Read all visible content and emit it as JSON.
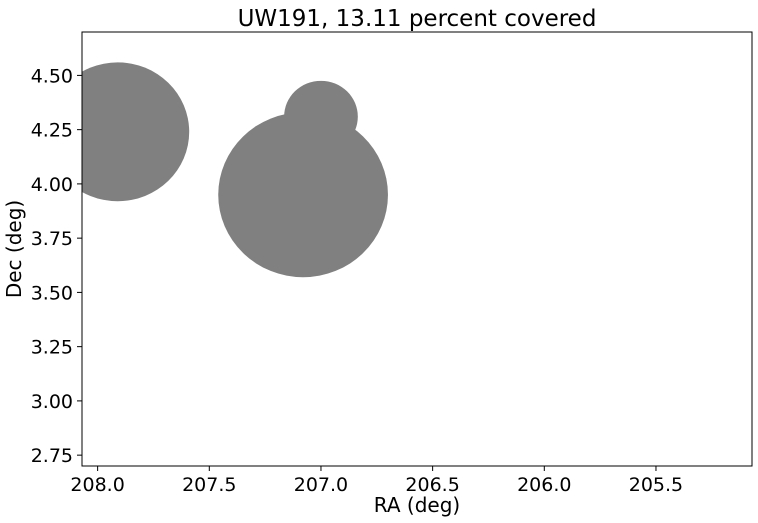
{
  "chart_data": {
    "type": "scatter",
    "title": "UW191, 13.11 percent covered",
    "xlabel": "RA (deg)",
    "ylabel": "Dec (deg)",
    "xlim": [
      208.07,
      205.07
    ],
    "ylim": [
      2.7,
      4.7
    ],
    "x_ticks": [
      208.0,
      207.5,
      207.0,
      206.5,
      206.0,
      205.5
    ],
    "x_tick_labels": [
      "208.0",
      "207.5",
      "207.0",
      "206.5",
      "206.0",
      "205.5"
    ],
    "y_ticks": [
      2.75,
      3.0,
      3.25,
      3.5,
      3.75,
      4.0,
      4.25,
      4.5
    ],
    "y_tick_labels": [
      "2.75",
      "3.00",
      "3.25",
      "3.50",
      "3.75",
      "4.00",
      "4.25",
      "4.50"
    ],
    "grid": false,
    "fill_color": "#808080",
    "circles": [
      {
        "ra": 207.91,
        "dec": 4.24,
        "radius": 0.32
      },
      {
        "ra": 207.08,
        "dec": 3.95,
        "radius": 0.38
      },
      {
        "ra": 207.0,
        "dec": 4.31,
        "radius": 0.165
      }
    ]
  }
}
